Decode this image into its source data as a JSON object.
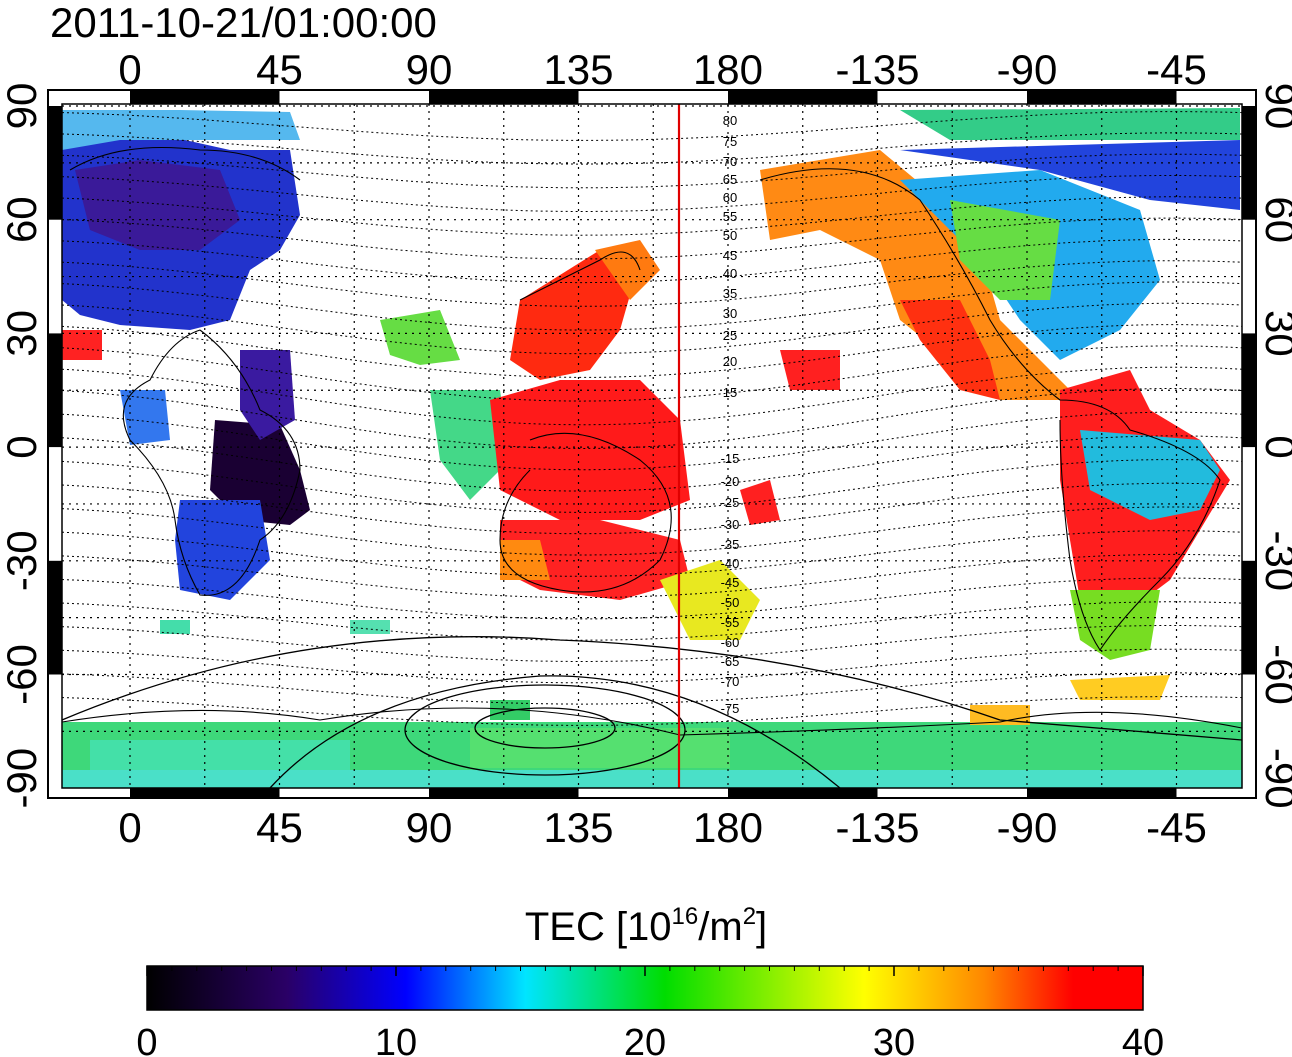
{
  "header": {
    "timestamp": "2011-10-21/01:00:00"
  },
  "map": {
    "top_lon_labels": [
      "0",
      "45",
      "90",
      "135",
      "180",
      "-135",
      "-90",
      "-45"
    ],
    "bottom_lon_labels": [
      "0",
      "45",
      "90",
      "135",
      "180",
      "-135",
      "-90",
      "-45"
    ],
    "left_lat_labels": [
      "90",
      "60",
      "30",
      "0",
      "-30",
      "-60",
      "-90"
    ],
    "right_lat_labels": [
      "90",
      "60",
      "30",
      "0",
      "-30",
      "-60",
      "-90"
    ],
    "magnetic_latitude_labels": [
      "80",
      "75",
      "70",
      "65",
      "60",
      "55",
      "50",
      "45",
      "40",
      "35",
      "30",
      "25",
      "20",
      "15",
      "-15",
      "-20",
      "-25",
      "-30",
      "-35",
      "-40",
      "-45",
      "-50",
      "-55",
      "-60",
      "-65",
      "-70",
      "-75"
    ],
    "meridian_line_color": "#e00000",
    "gridlines": "dotted"
  },
  "colorbar": {
    "title_text": "TEC  [10",
    "title_exp": "16",
    "title_unit": "/m",
    "title_sq": "2",
    "title_close": "]",
    "min": 0,
    "max": 40,
    "tick_labels": [
      "0",
      "10",
      "20",
      "30",
      "40"
    ],
    "colors": [
      "#000000",
      "#2a0066",
      "#0000ff",
      "#00e5ff",
      "#00dd00",
      "#ffff00",
      "#ff8800",
      "#ff0000"
    ]
  }
}
